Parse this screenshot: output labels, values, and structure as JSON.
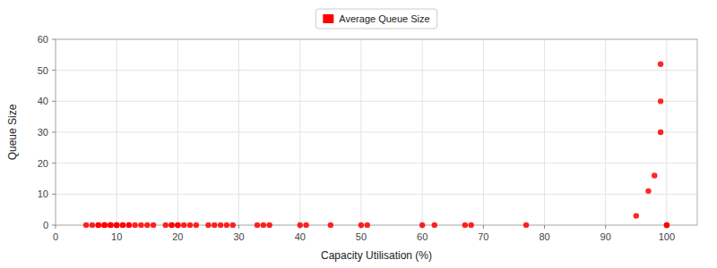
{
  "chart_data": {
    "type": "scatter",
    "xlabel": "Capacity Utilisation (%)",
    "ylabel": "Queue Size",
    "x": [
      5,
      6,
      7,
      7,
      8,
      8,
      8,
      9,
      9,
      9,
      10,
      10,
      10,
      11,
      11,
      12,
      12,
      13,
      14,
      15,
      16,
      18,
      19,
      19,
      20,
      20,
      21,
      22,
      23,
      25,
      26,
      27,
      28,
      29,
      33,
      34,
      35,
      40,
      41,
      45,
      50,
      51,
      60,
      62,
      67,
      68,
      77,
      95,
      97,
      98,
      99,
      99,
      99,
      100,
      100
    ],
    "series": [
      {
        "name": "Average Queue Size",
        "color": "#ff0000",
        "values": [
          0,
          0,
          0,
          0,
          0,
          0,
          0,
          0,
          0,
          0,
          0,
          0,
          0,
          0,
          0,
          0,
          0,
          0,
          0,
          0,
          0,
          0,
          0,
          0,
          0,
          0,
          0,
          0,
          0,
          0,
          0,
          0,
          0,
          0,
          0,
          0,
          0,
          0,
          0,
          0,
          0,
          0,
          0,
          0,
          0,
          0,
          0,
          3,
          11,
          16,
          30,
          40,
          52,
          0,
          0
        ]
      }
    ],
    "xlim": [
      0,
      105
    ],
    "ylim": [
      0,
      60
    ],
    "xticks": [
      0,
      10,
      20,
      30,
      40,
      50,
      60,
      70,
      80,
      90,
      100
    ],
    "yticks": [
      0,
      10,
      20,
      30,
      40,
      50,
      60
    ],
    "grid": true,
    "legend": "top"
  }
}
